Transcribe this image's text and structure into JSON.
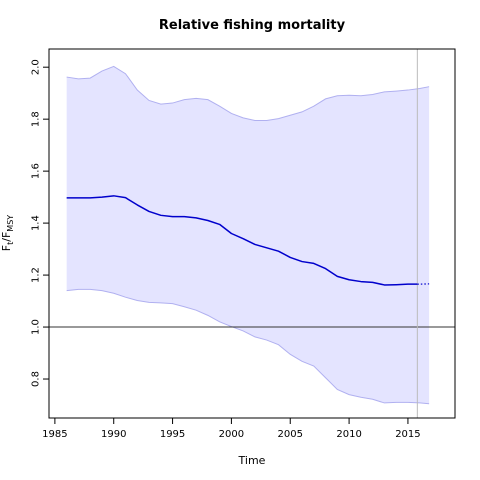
{
  "chart_data": {
    "type": "line",
    "title": "Relative fishing mortality",
    "xlabel": "Time",
    "ylabel": {
      "base": "F",
      "sub1": "t",
      "slash": "/F",
      "sub2": "MSY"
    },
    "xlim": [
      1984.5,
      2019.0
    ],
    "ylim": [
      0.65,
      2.07
    ],
    "xticks": [
      1985,
      1990,
      1995,
      2000,
      2005,
      2010,
      2015
    ],
    "yticks": [
      0.8,
      1.0,
      1.2,
      1.4,
      1.6,
      1.8,
      2.0
    ],
    "reference_line_y": 1.0,
    "vertical_line_x": 2015.8,
    "colors": {
      "line": "#0000cc",
      "band_fill": "#e4e4ff",
      "band_edge": "#b0b0f0",
      "reference": "#333333",
      "vertical": "#bbbbbb"
    },
    "series": [
      {
        "role": "estimate",
        "x": [
          1986,
          1988,
          1989,
          1990,
          1991,
          1992,
          1993,
          1994,
          1995,
          1996,
          1997,
          1998,
          1999,
          2000,
          2001,
          2002,
          2003,
          2004,
          2005,
          2006,
          2007,
          2008,
          2009,
          2010,
          2011,
          2012,
          2013,
          2014,
          2015,
          2015.8
        ],
        "y": [
          1.497,
          1.497,
          1.5,
          1.505,
          1.498,
          1.47,
          1.445,
          1.43,
          1.425,
          1.425,
          1.42,
          1.41,
          1.395,
          1.36,
          1.34,
          1.318,
          1.305,
          1.292,
          1.268,
          1.252,
          1.245,
          1.225,
          1.195,
          1.182,
          1.175,
          1.172,
          1.162,
          1.163,
          1.165,
          1.165
        ]
      },
      {
        "role": "projection",
        "x": [
          2015.8,
          2016.8
        ],
        "y": [
          1.165,
          1.166
        ]
      },
      {
        "role": "upper",
        "x": [
          1986,
          1987,
          1988,
          1989,
          1990,
          1991,
          1992,
          1993,
          1994,
          1995,
          1996,
          1997,
          1998,
          1999,
          2000,
          2001,
          2002,
          2003,
          2004,
          2005,
          2006,
          2007,
          2008,
          2009,
          2010,
          2011,
          2012,
          2013,
          2014,
          2015,
          2016,
          2016.8
        ],
        "y": [
          1.962,
          1.955,
          1.958,
          1.985,
          2.003,
          1.975,
          1.912,
          1.872,
          1.858,
          1.862,
          1.875,
          1.88,
          1.875,
          1.85,
          1.822,
          1.805,
          1.795,
          1.795,
          1.802,
          1.815,
          1.828,
          1.85,
          1.878,
          1.89,
          1.892,
          1.89,
          1.895,
          1.905,
          1.908,
          1.912,
          1.918,
          1.925
        ]
      },
      {
        "role": "lower",
        "x": [
          1986,
          1987,
          1988,
          1989,
          1990,
          1991,
          1992,
          1993,
          1994,
          1995,
          1996,
          1997,
          1998,
          1999,
          2000,
          2001,
          2002,
          2003,
          2004,
          2005,
          2006,
          2007,
          2008,
          2009,
          2010,
          2011,
          2012,
          2013,
          2014,
          2015,
          2016,
          2016.8
        ],
        "y": [
          1.14,
          1.145,
          1.145,
          1.14,
          1.13,
          1.115,
          1.102,
          1.095,
          1.093,
          1.09,
          1.078,
          1.065,
          1.045,
          1.02,
          1.002,
          0.985,
          0.962,
          0.95,
          0.932,
          0.895,
          0.868,
          0.85,
          0.805,
          0.76,
          0.74,
          0.73,
          0.722,
          0.708,
          0.71,
          0.71,
          0.708,
          0.705
        ]
      }
    ]
  }
}
